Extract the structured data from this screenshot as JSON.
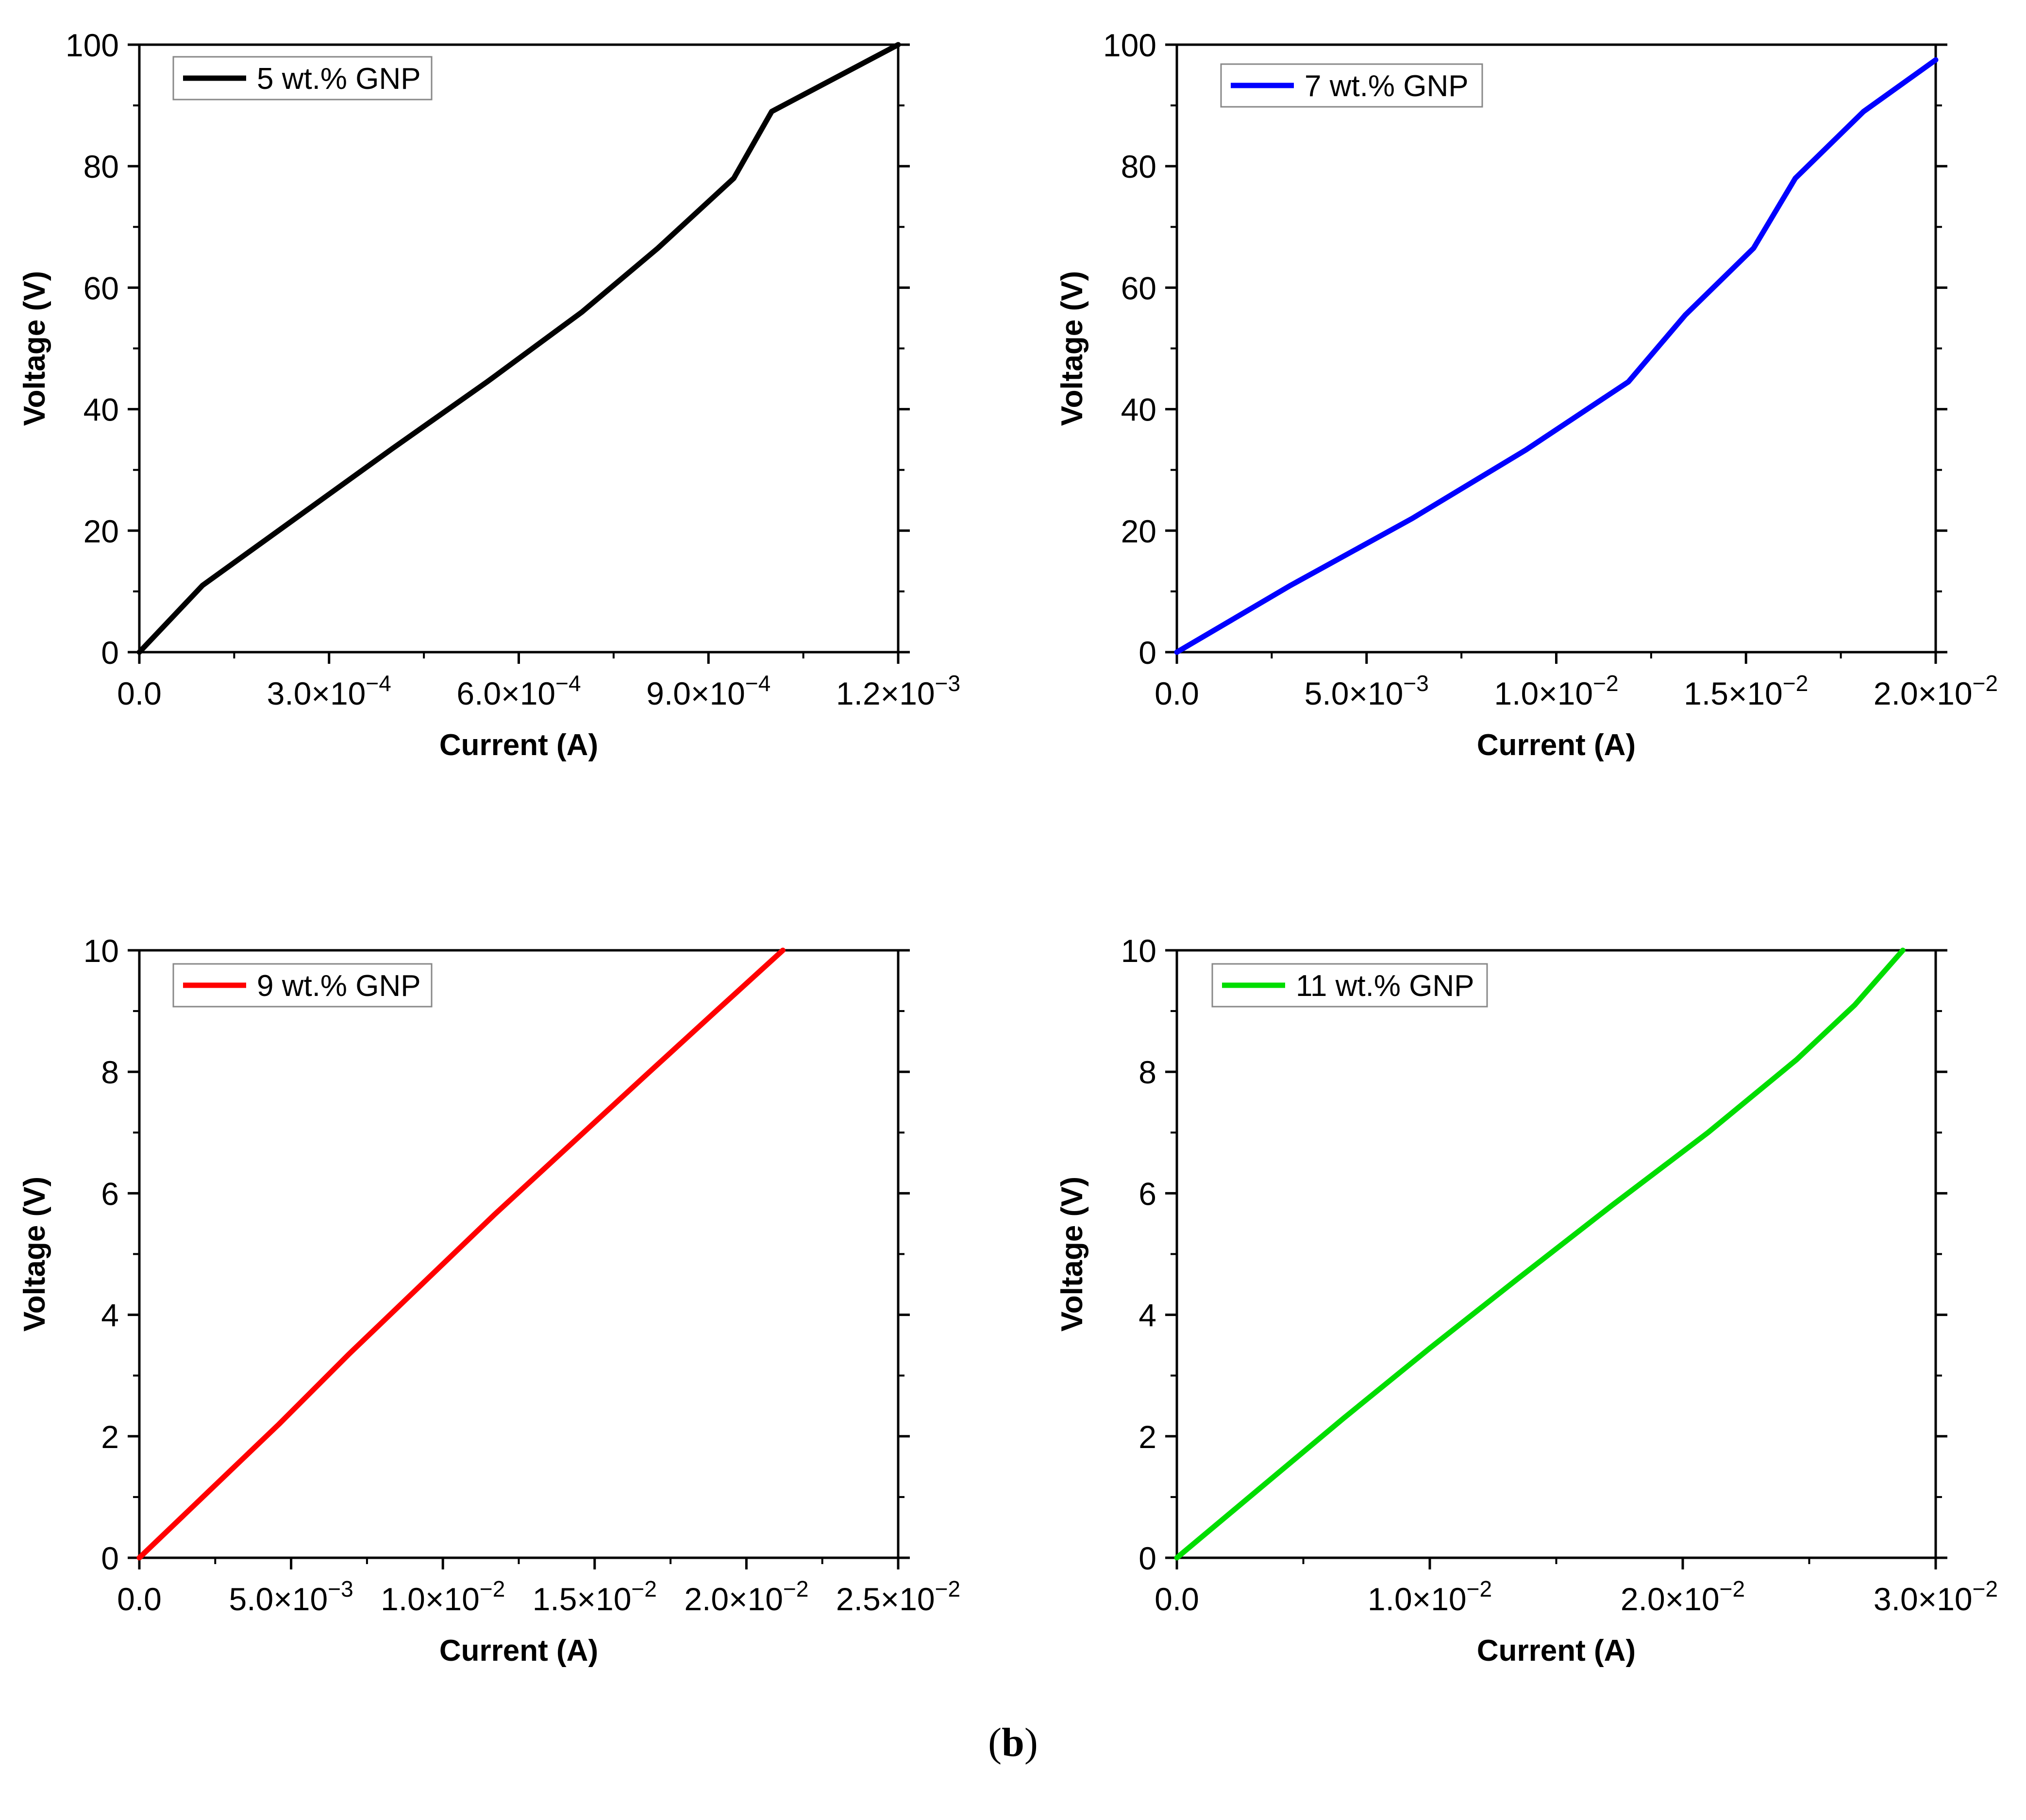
{
  "caption": {
    "open": "(",
    "letter": "b",
    "close": ")"
  },
  "chart_data": [
    {
      "type": "line",
      "title": "",
      "xlabel": "Current (A)",
      "ylabel": "Voltage (V)",
      "xlim": [
        0,
        0.0012
      ],
      "ylim": [
        0,
        100
      ],
      "grid": false,
      "legend_position": "top-left",
      "xticks": [
        {
          "value": 0,
          "mantissa": "0.0",
          "exponent": ""
        },
        {
          "value": 0.0003,
          "mantissa": "3.0×10",
          "exponent": "−4"
        },
        {
          "value": 0.0006,
          "mantissa": "6.0×10",
          "exponent": "−4"
        },
        {
          "value": 0.0009,
          "mantissa": "9.0×10",
          "exponent": "−4"
        },
        {
          "value": 0.0012,
          "mantissa": "1.2×10",
          "exponent": "−3"
        }
      ],
      "yticks": [
        {
          "value": 0,
          "label": "0"
        },
        {
          "value": 20,
          "label": "20"
        },
        {
          "value": 40,
          "label": "40"
        },
        {
          "value": 60,
          "label": "60"
        },
        {
          "value": 80,
          "label": "80"
        },
        {
          "value": 100,
          "label": "100"
        }
      ],
      "series": [
        {
          "name": "5 wt.% GNP",
          "color": "#000000",
          "x": [
            0,
            0.0001,
            0.0002,
            0.0003,
            0.0004,
            0.00055,
            0.0007,
            0.00082,
            0.00094,
            0.001,
            0.0012
          ],
          "y": [
            0,
            11,
            18.5,
            26,
            33.5,
            44.5,
            56,
            66.5,
            78,
            89,
            100
          ]
        }
      ]
    },
    {
      "type": "line",
      "title": "",
      "xlabel": "Current (A)",
      "ylabel": "Voltage (V)",
      "xlim": [
        0,
        0.02
      ],
      "ylim": [
        0,
        100
      ],
      "grid": false,
      "legend_position": "top-left",
      "xticks": [
        {
          "value": 0,
          "mantissa": "0.0",
          "exponent": ""
        },
        {
          "value": 0.005,
          "mantissa": "5.0×10",
          "exponent": "−3"
        },
        {
          "value": 0.01,
          "mantissa": "1.0×10",
          "exponent": "−2"
        },
        {
          "value": 0.015,
          "mantissa": "1.5×10",
          "exponent": "−2"
        },
        {
          "value": 0.02,
          "mantissa": "2.0×10",
          "exponent": "−2"
        }
      ],
      "yticks": [
        {
          "value": 0,
          "label": "0"
        },
        {
          "value": 20,
          "label": "20"
        },
        {
          "value": 40,
          "label": "40"
        },
        {
          "value": 60,
          "label": "60"
        },
        {
          "value": 80,
          "label": "80"
        },
        {
          "value": 100,
          "label": "100"
        }
      ],
      "series": [
        {
          "name": "7 wt.% GNP",
          "color": "#0000ff",
          "x": [
            0,
            0.003,
            0.0062,
            0.0092,
            0.0119,
            0.0134,
            0.0152,
            0.0163,
            0.0181,
            0.02
          ],
          "y": [
            0,
            11,
            22,
            33.3,
            44.5,
            55.5,
            66.5,
            78,
            89,
            97.5
          ]
        }
      ]
    },
    {
      "type": "line",
      "title": "",
      "xlabel": "Current (A)",
      "ylabel": "Voltage (V)",
      "xlim": [
        0,
        0.025
      ],
      "ylim": [
        0,
        10
      ],
      "grid": false,
      "legend_position": "top-left",
      "xticks": [
        {
          "value": 0,
          "mantissa": "0.0",
          "exponent": ""
        },
        {
          "value": 0.005,
          "mantissa": "5.0×10",
          "exponent": "−3"
        },
        {
          "value": 0.01,
          "mantissa": "1.0×10",
          "exponent": "−2"
        },
        {
          "value": 0.015,
          "mantissa": "1.5×10",
          "exponent": "−2"
        },
        {
          "value": 0.02,
          "mantissa": "2.0×10",
          "exponent": "−2"
        },
        {
          "value": 0.025,
          "mantissa": "2.5×10",
          "exponent": "−2"
        }
      ],
      "yticks": [
        {
          "value": 0,
          "label": "0"
        },
        {
          "value": 2,
          "label": "2"
        },
        {
          "value": 4,
          "label": "4"
        },
        {
          "value": 6,
          "label": "6"
        },
        {
          "value": 8,
          "label": "8"
        },
        {
          "value": 10,
          "label": "10"
        }
      ],
      "series": [
        {
          "name": "9 wt.% GNP",
          "color": "#ff0000",
          "x": [
            0,
            0.0023,
            0.0046,
            0.0069,
            0.0093,
            0.0117,
            0.0142,
            0.0167,
            0.019,
            0.0212
          ],
          "y": [
            0,
            1.1,
            2.2,
            3.35,
            4.5,
            5.65,
            6.8,
            7.95,
            9.0,
            10
          ]
        }
      ]
    },
    {
      "type": "line",
      "title": "",
      "xlabel": "Current (A)",
      "ylabel": "Voltage (V)",
      "xlim": [
        0,
        0.03
      ],
      "ylim": [
        0,
        10
      ],
      "grid": false,
      "legend_position": "top-left",
      "xticks": [
        {
          "value": 0,
          "mantissa": "0.0",
          "exponent": ""
        },
        {
          "value": 0.01,
          "mantissa": "1.0×10",
          "exponent": "−2"
        },
        {
          "value": 0.02,
          "mantissa": "2.0×10",
          "exponent": "−2"
        },
        {
          "value": 0.03,
          "mantissa": "3.0×10",
          "exponent": "−2"
        }
      ],
      "yticks": [
        {
          "value": 0,
          "label": "0"
        },
        {
          "value": 2,
          "label": "2"
        },
        {
          "value": 4,
          "label": "4"
        },
        {
          "value": 6,
          "label": "6"
        },
        {
          "value": 8,
          "label": "8"
        },
        {
          "value": 10,
          "label": "10"
        }
      ],
      "series": [
        {
          "name": "11 wt.% GNP",
          "color": "#00dd00",
          "x": [
            0,
            0.0033,
            0.0066,
            0.01,
            0.0135,
            0.0172,
            0.021,
            0.0245,
            0.0268,
            0.0287
          ],
          "y": [
            0,
            1.15,
            2.3,
            3.45,
            4.6,
            5.8,
            7.0,
            8.2,
            9.1,
            10
          ]
        }
      ]
    }
  ]
}
